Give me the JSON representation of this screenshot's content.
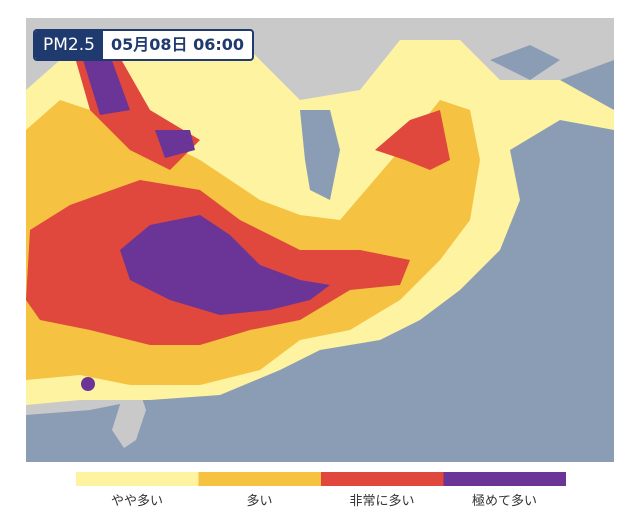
{
  "header": {
    "label": "PM2.5",
    "datetime": "05月08日 06:00"
  },
  "legend": {
    "items": [
      {
        "label": "やや多い",
        "color": "#fdf3a0"
      },
      {
        "label": "多い",
        "color": "#f5c242"
      },
      {
        "label": "非常に多い",
        "color": "#e0473d"
      },
      {
        "label": "極めて多い",
        "color": "#6a3597"
      }
    ]
  }
}
